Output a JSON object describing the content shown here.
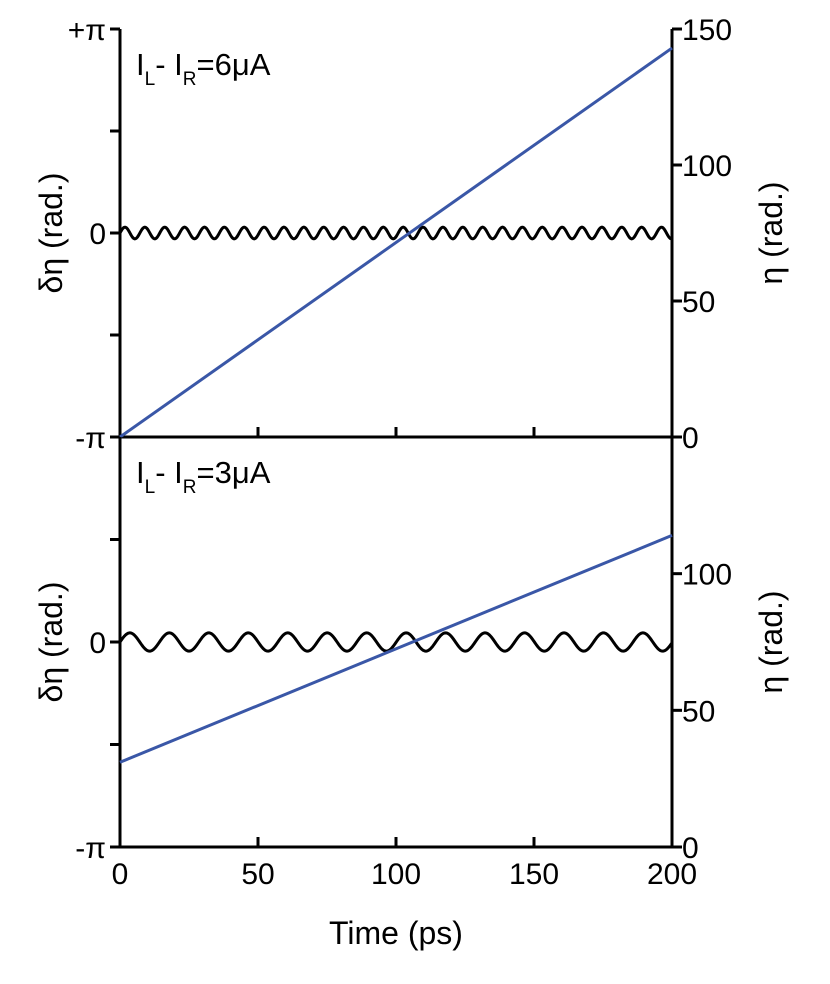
{
  "chart_data": [
    {
      "type": "line",
      "annotation": {
        "prefix": "I",
        "sub1": "L",
        "mid": "- I",
        "sub2": "R",
        "suffix": "=6μA"
      },
      "xlabel": "",
      "xlim": [
        0,
        200
      ],
      "x_ticks": [
        0,
        50,
        100,
        150,
        200
      ],
      "left_axis": {
        "label": "δη (rad.)",
        "ylim": [
          -3.14159,
          3.14159
        ],
        "tick_labels": [
          {
            "value": 3.14159,
            "text": "+π"
          },
          {
            "value": 0,
            "text": "0"
          },
          {
            "value": -3.14159,
            "text": "-π"
          }
        ],
        "minor_ticks": [
          -1.5708,
          1.5708
        ]
      },
      "right_axis": {
        "label": "η (rad.)",
        "ylim": [
          0,
          150
        ],
        "ticks": [
          0,
          50,
          100,
          150
        ]
      },
      "series": [
        {
          "axis": "left",
          "color": "#000000",
          "kind": "oscillation",
          "mean": 0.0,
          "amplitude": 0.09,
          "period_ps": 7.2,
          "x_range": [
            0,
            200
          ]
        },
        {
          "axis": "right",
          "color": "#3a57a7",
          "kind": "linear",
          "x": [
            0,
            200
          ],
          "y": [
            0,
            143
          ]
        }
      ]
    },
    {
      "type": "line",
      "annotation": {
        "prefix": "I",
        "sub1": "L",
        "mid": "- I",
        "sub2": "R",
        "suffix": "=3μA"
      },
      "xlabel": "Time (ps)",
      "xlim": [
        0,
        200
      ],
      "x_ticks": [
        0,
        50,
        100,
        150,
        200
      ],
      "left_axis": {
        "label": "δη (rad.)",
        "ylim": [
          -3.14159,
          3.14159
        ],
        "tick_labels": [
          {
            "value": 0,
            "text": "0"
          },
          {
            "value": -3.14159,
            "text": "-π"
          }
        ],
        "minor_ticks": [
          -1.5708,
          1.5708
        ]
      },
      "right_axis": {
        "label": "η (rad.)",
        "ylim": [
          0,
          150
        ],
        "ticks": [
          0,
          50,
          100
        ],
        "tick_labels_override": {
          "0": "0"
        }
      },
      "series": [
        {
          "axis": "left",
          "color": "#000000",
          "kind": "oscillation",
          "mean": 0.0,
          "amplitude": 0.14,
          "period_ps": 14.3,
          "x_range": [
            0,
            200
          ]
        },
        {
          "axis": "right",
          "color": "#3a57a7",
          "kind": "linear",
          "x": [
            0,
            200
          ],
          "y": [
            31,
            114
          ]
        }
      ]
    }
  ]
}
